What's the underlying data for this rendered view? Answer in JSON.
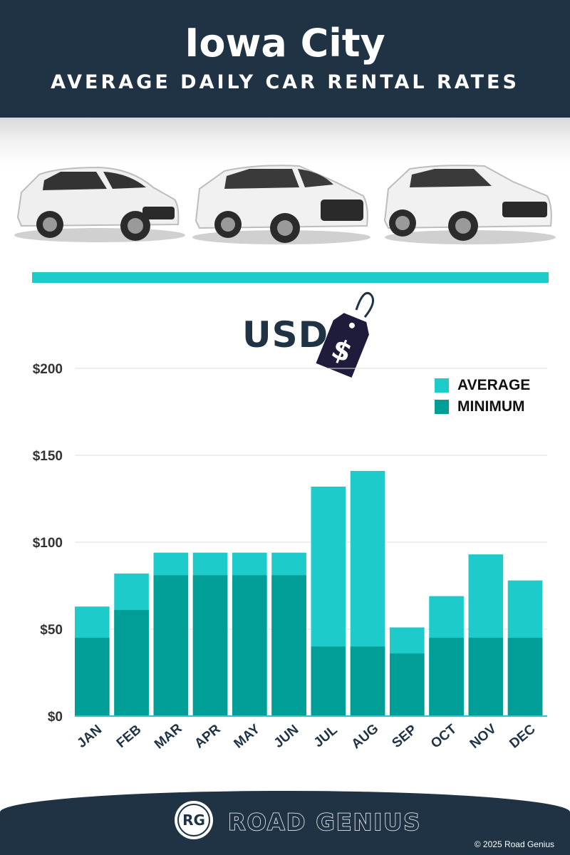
{
  "header": {
    "city": "Iowa City",
    "subtitle": "AVERAGE DAILY CAR RENTAL RATES"
  },
  "currency_label": "USD",
  "tag_symbol": "$",
  "colors": {
    "navy": "#1f3344",
    "average": "#1ecbcb",
    "minimum": "#009e97",
    "divider": "#1ecbcb"
  },
  "footer": {
    "logo_initials": "RG",
    "brand": "ROAD GENIUS",
    "copyright": "© 2025 Road Genius"
  },
  "chart_data": {
    "type": "bar",
    "stacked": false,
    "overlay": true,
    "categories": [
      "JAN",
      "FEB",
      "MAR",
      "APR",
      "MAY",
      "JUN",
      "JUL",
      "AUG",
      "SEP",
      "OCT",
      "NOV",
      "DEC"
    ],
    "series": [
      {
        "name": "AVERAGE",
        "color": "#1ecbcb",
        "values": [
          63,
          82,
          94,
          94,
          94,
          94,
          132,
          141,
          51,
          69,
          93,
          78
        ]
      },
      {
        "name": "MINIMUM",
        "color": "#009e97",
        "values": [
          45,
          61,
          81,
          81,
          81,
          81,
          40,
          40,
          36,
          45,
          45,
          45
        ]
      }
    ],
    "y_ticks": [
      "$0",
      "$50",
      "$100",
      "$150",
      "$200"
    ],
    "y_tick_values": [
      0,
      50,
      100,
      150,
      200
    ],
    "ylim": [
      0,
      200
    ],
    "grid": true,
    "legend_position": "top-right"
  }
}
